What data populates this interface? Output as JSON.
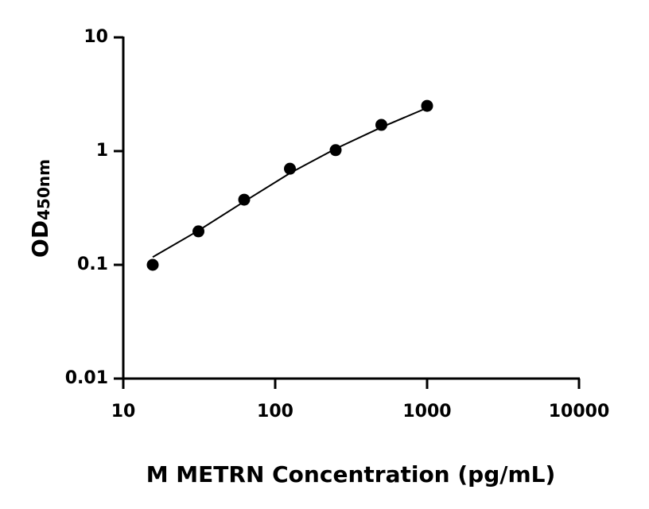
{
  "chart_data": {
    "type": "scatter",
    "xscale": "log",
    "yscale": "log",
    "xlabel": "M METRN Concentration (pg/mL)",
    "ylabel": "OD",
    "ylabel_subscript": "450nm",
    "x": [
      15.625,
      31.25,
      62.5,
      125,
      250,
      500,
      1000
    ],
    "values": [
      0.1,
      0.197,
      0.374,
      0.7,
      1.02,
      1.7,
      2.5
    ],
    "color": "#000000",
    "fit": {
      "x": [
        15.625,
        31.25,
        62.5,
        125,
        250,
        500,
        1000
      ],
      "values": [
        0.117,
        0.2,
        0.36,
        0.64,
        1.05,
        1.62,
        2.4
      ]
    },
    "xlim": [
      10,
      10000
    ],
    "xticks": [
      10,
      100,
      1000,
      10000
    ],
    "ylim": [
      0.01,
      10
    ],
    "yticks": [
      0.01,
      0.1,
      1,
      10
    ],
    "grid": false
  }
}
